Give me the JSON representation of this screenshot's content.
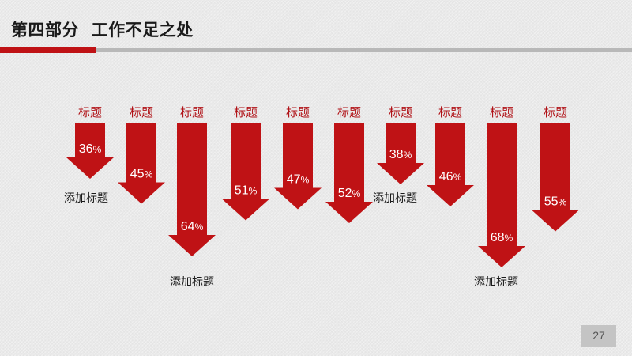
{
  "header": {
    "title": "第四部分  工作不足之处"
  },
  "colors": {
    "accent": "#bf1215",
    "label": "#b01015",
    "rule": "#b8b8b8"
  },
  "chart_data": {
    "type": "bar",
    "orientation": "down-arrows",
    "categories": [
      "标题",
      "标题",
      "标题",
      "标题",
      "标题",
      "标题",
      "标题",
      "标题",
      "标题",
      "标题"
    ],
    "values": [
      36,
      45,
      64,
      51,
      47,
      52,
      38,
      46,
      68,
      55
    ],
    "unit": "%",
    "annotations": [
      {
        "text": "添加标题",
        "bar": 0
      },
      {
        "text": "添加标题",
        "bar": 2
      },
      {
        "text": "添加标题",
        "bar": 6
      },
      {
        "text": "添加标题",
        "bar": 8
      }
    ]
  },
  "footer": {
    "page_number": "27"
  }
}
